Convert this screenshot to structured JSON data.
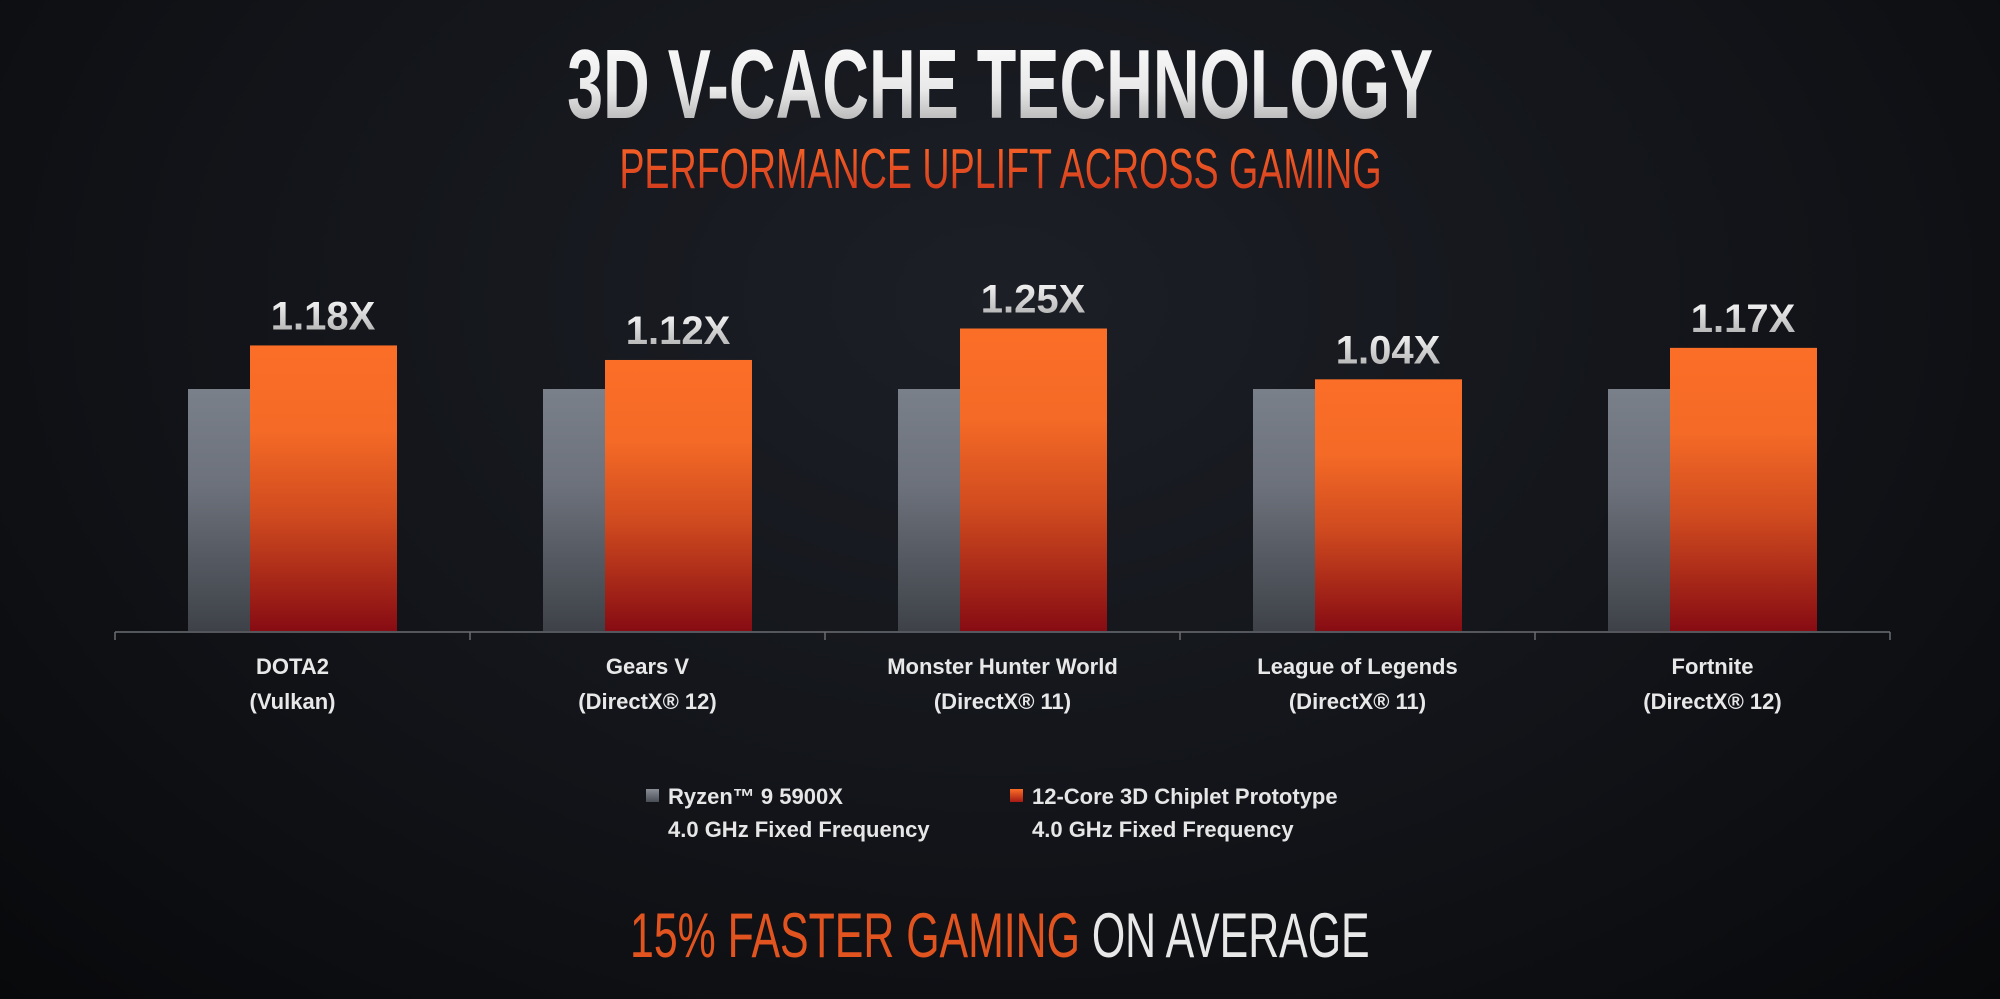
{
  "header": {
    "title": "3D V-CACHE TECHNOLOGY",
    "subtitle": "PERFORMANCE UPLIFT ACROSS GAMING"
  },
  "footer": {
    "highlight": "15% FASTER GAMING",
    "rest": "ON AVERAGE"
  },
  "colors": {
    "baseline": "#6b707a",
    "prototype": "#f26a22",
    "prototype_dark": "#8a0e12",
    "accent": "#e2541f"
  },
  "chart_data": {
    "type": "bar",
    "title": "",
    "categories": [
      [
        "DOTA2",
        "(Vulkan)"
      ],
      [
        "Gears V",
        "(DirectX® 12)"
      ],
      [
        "Monster Hunter World",
        "(DirectX® 11)"
      ],
      [
        "League of Legends",
        "(DirectX® 11)"
      ],
      [
        "Fortnite",
        "(DirectX® 12)"
      ]
    ],
    "series": [
      {
        "name": "Ryzen™ 9 5900X",
        "name_line2": "4.0 GHz Fixed Frequency",
        "values": [
          1.0,
          1.0,
          1.0,
          1.0,
          1.0
        ]
      },
      {
        "name": "12-Core 3D Chiplet Prototype",
        "name_line2": "4.0 GHz Fixed Frequency",
        "values": [
          1.18,
          1.12,
          1.25,
          1.04,
          1.17
        ]
      }
    ],
    "data_labels": [
      "1.18X",
      "1.12X",
      "1.25X",
      "1.04X",
      "1.17X"
    ],
    "ylim": [
      0,
      1.25
    ],
    "grid": false,
    "legend": "bottom"
  }
}
